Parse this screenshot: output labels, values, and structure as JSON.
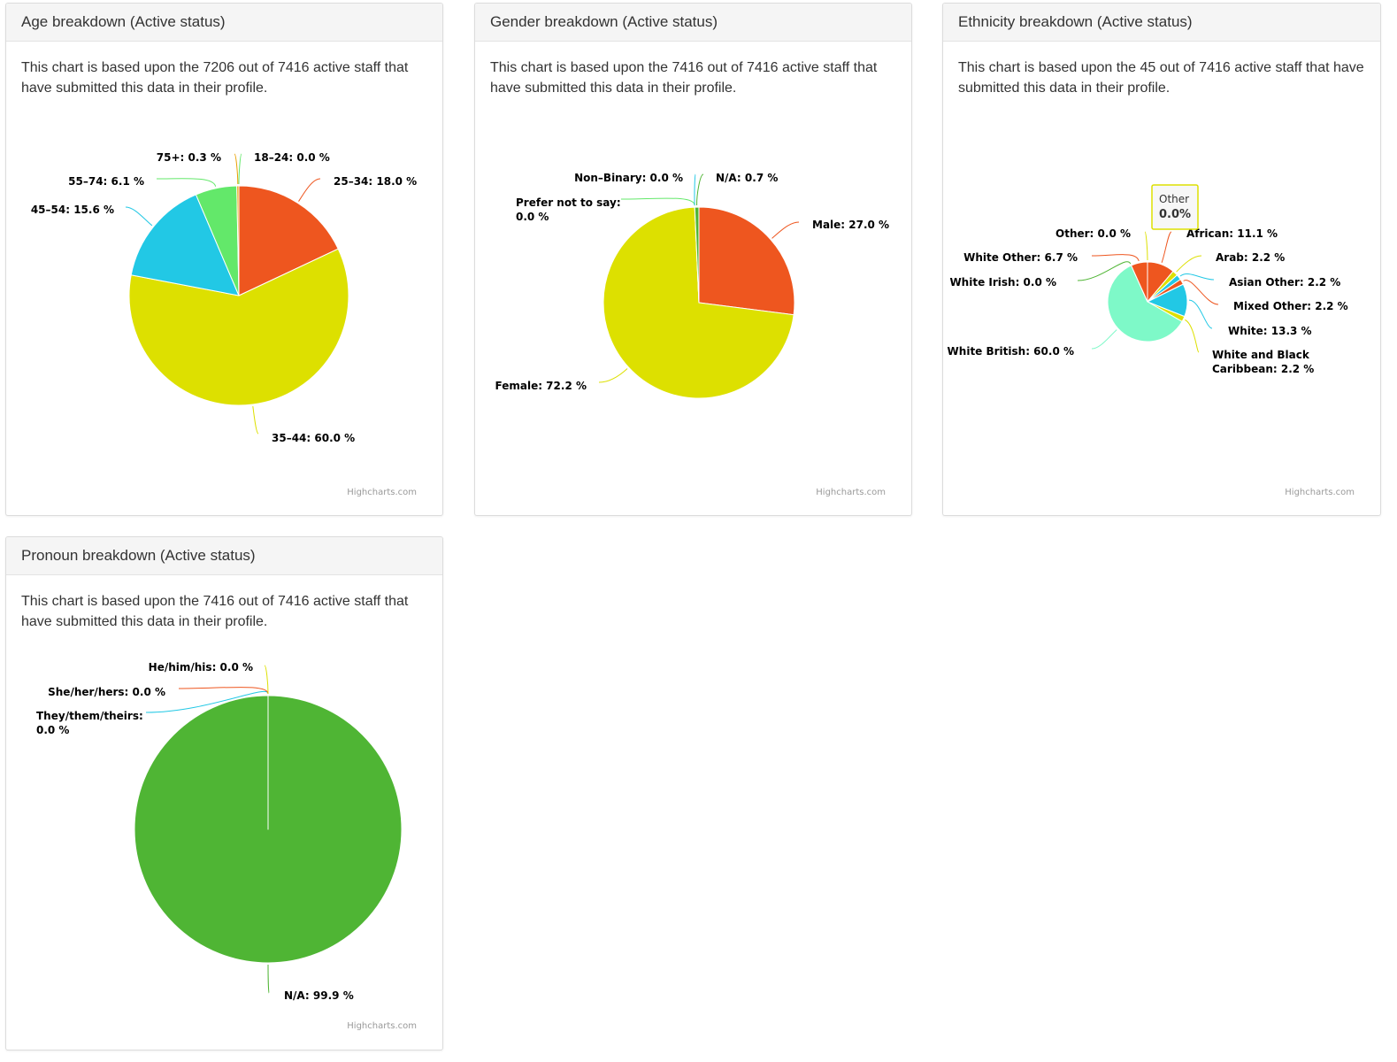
{
  "cards": [
    {
      "title": "Age breakdown (Active status)",
      "description": "This chart is based upon the 7206 out of 7416 active staff that have submitted this data in their profile.",
      "credits": "Highcharts.com"
    },
    {
      "title": "Gender breakdown (Active status)",
      "description": "This chart is based upon the 7416 out of 7416 active staff that have submitted this data in their profile.",
      "credits": "Highcharts.com"
    },
    {
      "title": "Ethnicity breakdown (Active status)",
      "description": "This chart is based upon the 45 out of 7416 active staff that have submitted this data in their profile.",
      "credits": "Highcharts.com",
      "tooltip": {
        "name": "Other",
        "value": "0.0%"
      }
    },
    {
      "title": "Pronoun breakdown (Active status)",
      "description": "This chart is based upon the 7416 out of 7416 active staff that have submitted this data in their profile.",
      "credits": "Highcharts.com"
    }
  ],
  "chart_data": [
    {
      "type": "pie",
      "series": [
        {
          "name": "18–24",
          "value": 0.0,
          "label": "18–24: 0.0 %",
          "color": "#63e86a"
        },
        {
          "name": "25–34",
          "value": 18.0,
          "label": "25–34: 18.0 %",
          "color": "#ee561f"
        },
        {
          "name": "35–44",
          "value": 60.0,
          "label": "35–44: 60.0 %",
          "color": "#dde000"
        },
        {
          "name": "45–54",
          "value": 15.6,
          "label": "45–54: 15.6 %",
          "color": "#22c8e5"
        },
        {
          "name": "55–74",
          "value": 6.1,
          "label": "55–74: 6.1 %",
          "color": "#63e86a"
        },
        {
          "name": "75+",
          "value": 0.3,
          "label": "75+: 0.3 %",
          "color": "#e8a000"
        }
      ]
    },
    {
      "type": "pie",
      "series": [
        {
          "name": "Male",
          "value": 27.0,
          "label": "Male: 27.0 %",
          "color": "#ee561f"
        },
        {
          "name": "Female",
          "value": 72.2,
          "label": "Female: 72.2 %",
          "color": "#dde000"
        },
        {
          "name": "Prefer not to say",
          "value": 0.0,
          "label": "Prefer not to say: 0.0 %",
          "color": "#63e86a"
        },
        {
          "name": "Non-Binary",
          "value": 0.0,
          "label": "Non–Binary: 0.0 %",
          "color": "#22c8e5"
        },
        {
          "name": "N/A",
          "value": 0.7,
          "label": "N/A: 0.7 %",
          "color": "#4fb534"
        }
      ]
    },
    {
      "type": "pie",
      "series": [
        {
          "name": "African",
          "value": 11.1,
          "label": "African: 11.1 %",
          "color": "#ee561f"
        },
        {
          "name": "Arab",
          "value": 2.2,
          "label": "Arab: 2.2 %",
          "color": "#dde000"
        },
        {
          "name": "Asian Other",
          "value": 2.2,
          "label": "Asian Other: 2.2 %",
          "color": "#22c8e5"
        },
        {
          "name": "Mixed Other",
          "value": 2.2,
          "label": "Mixed Other: 2.2 %",
          "color": "#ee561f"
        },
        {
          "name": "White",
          "value": 13.3,
          "label": "White: 13.3 %",
          "color": "#22c8e5"
        },
        {
          "name": "White and Black Caribbean",
          "value": 2.2,
          "label": "White and Black Caribbean: 2.2 %",
          "color": "#dde000"
        },
        {
          "name": "White British",
          "value": 60.0,
          "label": "White British: 60.0 %",
          "color": "#7ef9c8"
        },
        {
          "name": "White Irish",
          "value": 0.0,
          "label": "White Irish: 0.0 %",
          "color": "#4fb534"
        },
        {
          "name": "White Other",
          "value": 6.7,
          "label": "White Other: 6.7 %",
          "color": "#ee561f"
        },
        {
          "name": "Other",
          "value": 0.0,
          "label": "Other: 0.0 %",
          "color": "#dde000"
        }
      ]
    },
    {
      "type": "pie",
      "series": [
        {
          "name": "N/A",
          "value": 99.9,
          "label": "N/A: 99.9 %",
          "color": "#4fb534"
        },
        {
          "name": "They/them/theirs",
          "value": 0.0,
          "label": "They/them/theirs: 0.0 %",
          "color": "#22c8e5"
        },
        {
          "name": "She/her/hers",
          "value": 0.0,
          "label": "She/her/hers: 0.0 %",
          "color": "#ee561f"
        },
        {
          "name": "He/him/his",
          "value": 0.0,
          "label": "He/him/his: 0.0 %",
          "color": "#dde000"
        }
      ]
    }
  ]
}
